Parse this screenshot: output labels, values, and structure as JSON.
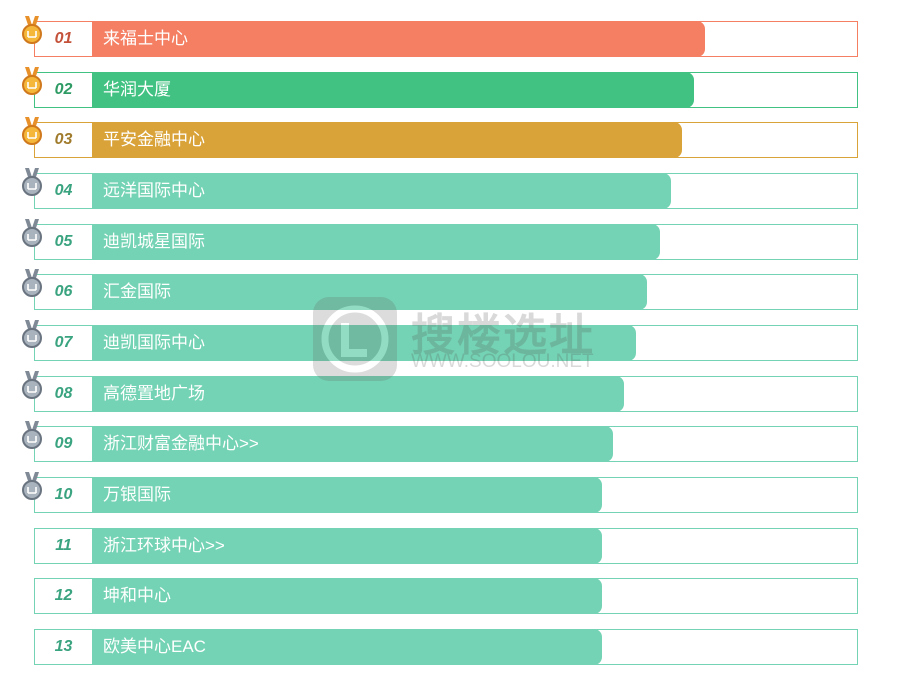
{
  "colors": {
    "gold_bar": "#f47f62",
    "gold_border": "#f47f62",
    "gold_num": "#c4513a",
    "silver_bar": "#42c282",
    "silver_border": "#42c282",
    "silver_num": "#2e9b65",
    "bronze_bar": "#d9a339",
    "bronze_border": "#d9a339",
    "bronze_num": "#a07b2c",
    "default_bar": "#74d3b4",
    "default_border": "#74d3b4",
    "default_num": "#3aa37f"
  },
  "ranking": [
    {
      "rank": "01",
      "name": "来福士中心",
      "level": 1.0,
      "style": "gold",
      "medal": "gold-medal-icon"
    },
    {
      "rank": "02",
      "name": "华润大厦",
      "level": 0.982,
      "style": "silver",
      "medal": "gold-medal-icon"
    },
    {
      "rank": "03",
      "name": "平安金融中心",
      "level": 0.962,
      "style": "bronze",
      "medal": "gold-medal-icon"
    },
    {
      "rank": "04",
      "name": "远洋国际中心",
      "level": 0.944,
      "style": "default",
      "medal": "silver-medal-icon"
    },
    {
      "rank": "05",
      "name": "迪凯城星国际",
      "level": 0.926,
      "style": "default",
      "medal": "silver-medal-icon"
    },
    {
      "rank": "06",
      "name": "汇金国际",
      "level": 0.906,
      "style": "default",
      "medal": "silver-medal-icon"
    },
    {
      "rank": "07",
      "name": "迪凯国际中心",
      "level": 0.888,
      "style": "default",
      "medal": "silver-medal-icon"
    },
    {
      "rank": "08",
      "name": "高德置地广场",
      "level": 0.868,
      "style": "default",
      "medal": "silver-medal-icon"
    },
    {
      "rank": "09",
      "name": "浙江财富金融中心>>",
      "level": 0.85,
      "style": "default",
      "medal": "silver-medal-icon"
    },
    {
      "rank": "10",
      "name": "万银国际",
      "level": 0.832,
      "style": "default",
      "medal": "silver-medal-icon"
    },
    {
      "rank": "11",
      "name": "浙江环球中心>>",
      "level": 0.832,
      "style": "default",
      "medal": ""
    },
    {
      "rank": "12",
      "name": "坤和中心",
      "level": 0.832,
      "style": "default",
      "medal": ""
    },
    {
      "rank": "13",
      "name": "欧美中心EAC",
      "level": 0.832,
      "style": "default",
      "medal": ""
    }
  ],
  "watermark": {
    "logo": "soolou-logo",
    "text_cn": "搜楼选址",
    "text_en": "WWW.SOOLOU.NET"
  }
}
